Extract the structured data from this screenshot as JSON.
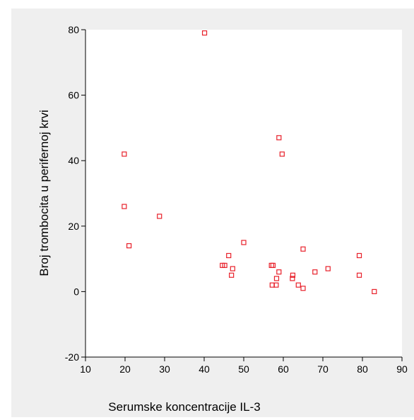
{
  "chart_data": {
    "type": "scatter",
    "title": "",
    "xlabel": "Serumske koncentracije IL-3",
    "ylabel": "Broj trombocita u perifernoj krvi",
    "xlim": [
      10,
      90
    ],
    "ylim": [
      -20,
      80
    ],
    "x_ticks": [
      10,
      20,
      30,
      40,
      50,
      60,
      70,
      80,
      90
    ],
    "y_ticks": [
      -20,
      0,
      20,
      40,
      60,
      80
    ],
    "grid": false,
    "legend": "none",
    "marker": "hollow-square",
    "colors": {
      "marker": "#e8202a",
      "plot_background": "#ffffff",
      "frame_background": "#efefef"
    },
    "points": [
      {
        "x": 40.1,
        "y": 79
      },
      {
        "x": 19.8,
        "y": 42
      },
      {
        "x": 19.8,
        "y": 26
      },
      {
        "x": 21.0,
        "y": 14
      },
      {
        "x": 28.7,
        "y": 23
      },
      {
        "x": 58.9,
        "y": 47
      },
      {
        "x": 59.7,
        "y": 42
      },
      {
        "x": 50.0,
        "y": 15
      },
      {
        "x": 44.6,
        "y": 8
      },
      {
        "x": 45.2,
        "y": 8
      },
      {
        "x": 46.2,
        "y": 11
      },
      {
        "x": 47.2,
        "y": 7
      },
      {
        "x": 46.9,
        "y": 5
      },
      {
        "x": 57.0,
        "y": 8
      },
      {
        "x": 57.4,
        "y": 8
      },
      {
        "x": 57.2,
        "y": 2
      },
      {
        "x": 58.2,
        "y": 2
      },
      {
        "x": 58.3,
        "y": 4
      },
      {
        "x": 58.9,
        "y": 6
      },
      {
        "x": 62.4,
        "y": 5
      },
      {
        "x": 62.3,
        "y": 4
      },
      {
        "x": 63.8,
        "y": 2
      },
      {
        "x": 65.0,
        "y": 13
      },
      {
        "x": 65.0,
        "y": 1
      },
      {
        "x": 68.0,
        "y": 6
      },
      {
        "x": 71.3,
        "y": 7
      },
      {
        "x": 79.2,
        "y": 11
      },
      {
        "x": 79.2,
        "y": 5
      },
      {
        "x": 83.0,
        "y": 0
      }
    ]
  }
}
